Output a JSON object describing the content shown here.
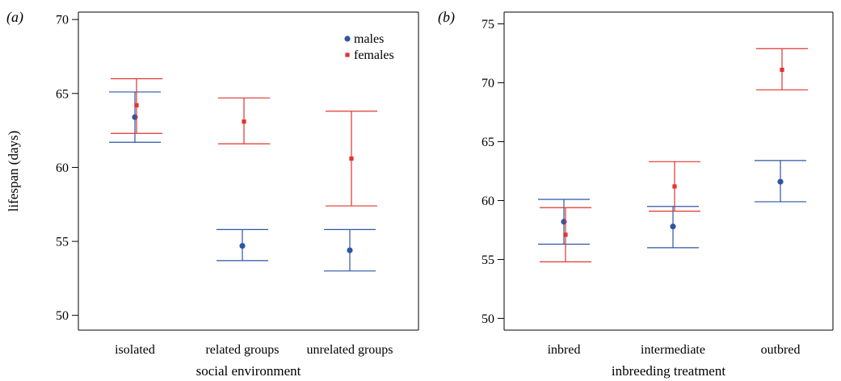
{
  "chart_data": [
    {
      "type": "scatter",
      "panel_label": "(a)",
      "title": "",
      "xlabel": "social environment",
      "ylabel": "lifespan (days)",
      "ylim": [
        49,
        70.5
      ],
      "yticks": [
        50,
        55,
        60,
        65,
        70
      ],
      "categories": [
        "isolated",
        "related groups",
        "unrelated groups"
      ],
      "legend": {
        "position": "top-right",
        "entries": [
          "males",
          "females"
        ]
      },
      "colors": {
        "males": "#2f55a4",
        "females": "#e0342f"
      },
      "series": [
        {
          "name": "males",
          "values": [
            63.4,
            54.7,
            54.4
          ],
          "lower": [
            61.7,
            53.7,
            53.0
          ],
          "upper": [
            65.1,
            55.8,
            55.8
          ]
        },
        {
          "name": "females",
          "values": [
            64.2,
            63.1,
            60.6
          ],
          "lower": [
            62.3,
            61.6,
            57.4
          ],
          "upper": [
            66.0,
            64.7,
            63.8
          ]
        }
      ]
    },
    {
      "type": "scatter",
      "panel_label": "(b)",
      "title": "",
      "xlabel": "inbreeding treatment",
      "ylabel": "",
      "ylim": [
        49,
        76
      ],
      "yticks": [
        50,
        55,
        60,
        65,
        70,
        75
      ],
      "categories": [
        "inbred",
        "intermediate",
        "outbred"
      ],
      "colors": {
        "males": "#2f55a4",
        "females": "#e0342f"
      },
      "series": [
        {
          "name": "males",
          "values": [
            58.2,
            57.8,
            61.6
          ],
          "lower": [
            56.3,
            56.0,
            59.9
          ],
          "upper": [
            60.1,
            59.5,
            63.4
          ]
        },
        {
          "name": "females",
          "values": [
            57.1,
            61.2,
            71.1
          ],
          "lower": [
            54.8,
            59.1,
            69.4
          ],
          "upper": [
            59.4,
            63.3,
            72.9
          ]
        }
      ]
    }
  ]
}
